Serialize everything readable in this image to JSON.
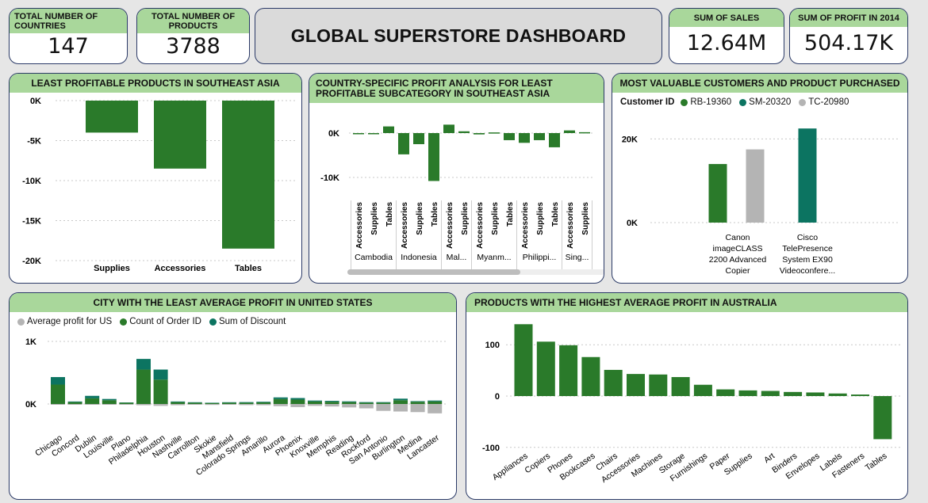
{
  "kpis": {
    "countries": {
      "label": "TOTAL NUMBER OF COUNTRIES",
      "value": "147"
    },
    "products": {
      "label": "TOTAL NUMBER OF PRODUCTS",
      "value": "3788"
    },
    "sales": {
      "label": "SUM OF SALES",
      "value": "12.64M"
    },
    "profit2014": {
      "label": "SUM OF PROFIT IN 2014",
      "value": "504.17K"
    }
  },
  "dashboard_title": "GLOBAL SUPERSTORE DASHBOARD",
  "colors": {
    "green": "#2a7a2a",
    "teal": "#0c7461",
    "gray": "#b4b4b4",
    "header": "#a9d79b"
  },
  "panels": {
    "se_asia_products": {
      "title": "LEAST PROFITABLE PRODUCTS IN SOUTHEAST ASIA"
    },
    "country_profit": {
      "title": "COUNTRY-SPECIFIC PROFIT ANALYSIS FOR LEAST PROFITABLE SUBCATEGORY IN SOUTHEAST ASIA"
    },
    "valuable_customers": {
      "title": "MOST VALUABLE CUSTOMERS AND PRODUCT PURCHASED",
      "legend_label": "Customer ID",
      "legend": [
        "RB-19360",
        "SM-20320",
        "TC-20980"
      ]
    },
    "us_city": {
      "title": "CITY WITH THE LEAST AVERAGE PROFIT IN UNITED STATES",
      "legend": [
        "Average profit for US",
        "Count of Order ID",
        "Sum of Discount"
      ]
    },
    "australia": {
      "title": "PRODUCTS WITH THE HIGHEST AVERAGE PROFIT IN AUSTRALIA"
    }
  },
  "chart_data": [
    {
      "id": "se_asia_products",
      "type": "bar",
      "title": "LEAST PROFITABLE PRODUCTS IN SOUTHEAST ASIA",
      "categories": [
        "Supplies",
        "Accessories",
        "Tables"
      ],
      "values": [
        -4000,
        -8500,
        -18500
      ],
      "ylim": [
        -20000,
        0
      ],
      "yticks": [
        "0K",
        "-5K",
        "-10K",
        "-15K",
        "-20K"
      ]
    },
    {
      "id": "country_profit",
      "type": "bar",
      "title": "COUNTRY-SPECIFIC PROFIT ANALYSIS FOR LEAST PROFITABLE SUBCATEGORY IN SOUTHEAST ASIA",
      "groups": [
        {
          "country": "Cambodia",
          "items": [
            {
              "cat": "Accessories",
              "value": -100
            },
            {
              "cat": "Supplies",
              "value": -150
            },
            {
              "cat": "Tables",
              "value": 1500
            }
          ]
        },
        {
          "country": "Indonesia",
          "items": [
            {
              "cat": "Accessories",
              "value": -4800
            },
            {
              "cat": "Supplies",
              "value": -2500
            },
            {
              "cat": "Tables",
              "value": -10800
            }
          ]
        },
        {
          "country": "Mal...",
          "items": [
            {
              "cat": "Accessories",
              "value": 1900
            },
            {
              "cat": "Supplies",
              "value": 400
            }
          ]
        },
        {
          "country": "Myanm...",
          "items": [
            {
              "cat": "Accessories",
              "value": -300
            },
            {
              "cat": "Supplies",
              "value": 150
            },
            {
              "cat": "Tables",
              "value": -1600
            }
          ]
        },
        {
          "country": "Philippi...",
          "items": [
            {
              "cat": "Accessories",
              "value": -2200
            },
            {
              "cat": "Supplies",
              "value": -1600
            },
            {
              "cat": "Tables",
              "value": -3200
            }
          ]
        },
        {
          "country": "Sing...",
          "items": [
            {
              "cat": "Accessories",
              "value": 600
            },
            {
              "cat": "Supplies",
              "value": 200
            }
          ]
        }
      ],
      "yticks": [
        "0K",
        "-10K"
      ]
    },
    {
      "id": "valuable_customers",
      "type": "bar",
      "title": "MOST VALUABLE CUSTOMERS AND PRODUCT PURCHASED",
      "categories": [
        [
          "Canon",
          "imageCLASS",
          "2200 Advanced",
          "Copier"
        ],
        [
          "Cisco",
          "TelePresence",
          "System EX90",
          "Videoconfere..."
        ]
      ],
      "series": [
        {
          "name": "RB-19360",
          "values": [
            14000,
            null
          ]
        },
        {
          "name": "SM-20320",
          "values": [
            null,
            22500
          ]
        },
        {
          "name": "TC-20980",
          "values": [
            17500,
            null
          ]
        }
      ],
      "ylim": [
        0,
        25000
      ],
      "yticks": [
        "20K",
        "0K"
      ]
    },
    {
      "id": "us_city",
      "type": "bar",
      "title": "CITY WITH THE LEAST AVERAGE PROFIT IN UNITED STATES",
      "categories": [
        "Chicago",
        "Concord",
        "Dublin",
        "Louisville",
        "Plano",
        "Philadelphia",
        "Houston",
        "Nashville",
        "Carrollton",
        "Skokie",
        "Mansfield",
        "Colorado Springs",
        "Amarillo",
        "Aurora",
        "Phoenix",
        "Knoxville",
        "Memphis",
        "Reading",
        "Rockford",
        "San Antonio",
        "Burlington",
        "Medina",
        "Lancaster"
      ],
      "series": [
        {
          "name": "Average profit for US",
          "values": [
            -10,
            -5,
            -8,
            -10,
            -5,
            -20,
            -30,
            -20,
            -10,
            -15,
            -12,
            -18,
            -20,
            -35,
            -50,
            -30,
            -40,
            -55,
            -70,
            -110,
            -120,
            -130,
            -150
          ]
        },
        {
          "name": "Count of Order ID",
          "values": [
            310,
            30,
            90,
            60,
            20,
            550,
            390,
            30,
            20,
            15,
            20,
            20,
            25,
            80,
            70,
            40,
            35,
            30,
            20,
            20,
            60,
            35,
            40
          ]
        },
        {
          "name": "Sum of Discount",
          "values": [
            120,
            10,
            40,
            20,
            5,
            170,
            160,
            10,
            8,
            6,
            8,
            10,
            10,
            25,
            25,
            15,
            15,
            12,
            10,
            10,
            25,
            10,
            15
          ]
        }
      ],
      "yticks": [
        "1K",
        "0K"
      ]
    },
    {
      "id": "australia",
      "type": "bar",
      "title": "PRODUCTS WITH THE HIGHEST AVERAGE PROFIT IN AUSTRALIA",
      "categories": [
        "Appliances",
        "Copiers",
        "Phones",
        "Bookcases",
        "Chairs",
        "Accessories",
        "Machines",
        "Storage",
        "Furnishings",
        "Paper",
        "Supplies",
        "Art",
        "Binders",
        "Envelopes",
        "Labels",
        "Fasteners",
        "Tables"
      ],
      "values": [
        140,
        106,
        99,
        76,
        51,
        43,
        42,
        37,
        22,
        13,
        11,
        10,
        8,
        7,
        5,
        3,
        -84
      ],
      "ylim": [
        -100,
        150
      ],
      "yticks": [
        "100",
        "0",
        "-100"
      ]
    }
  ]
}
